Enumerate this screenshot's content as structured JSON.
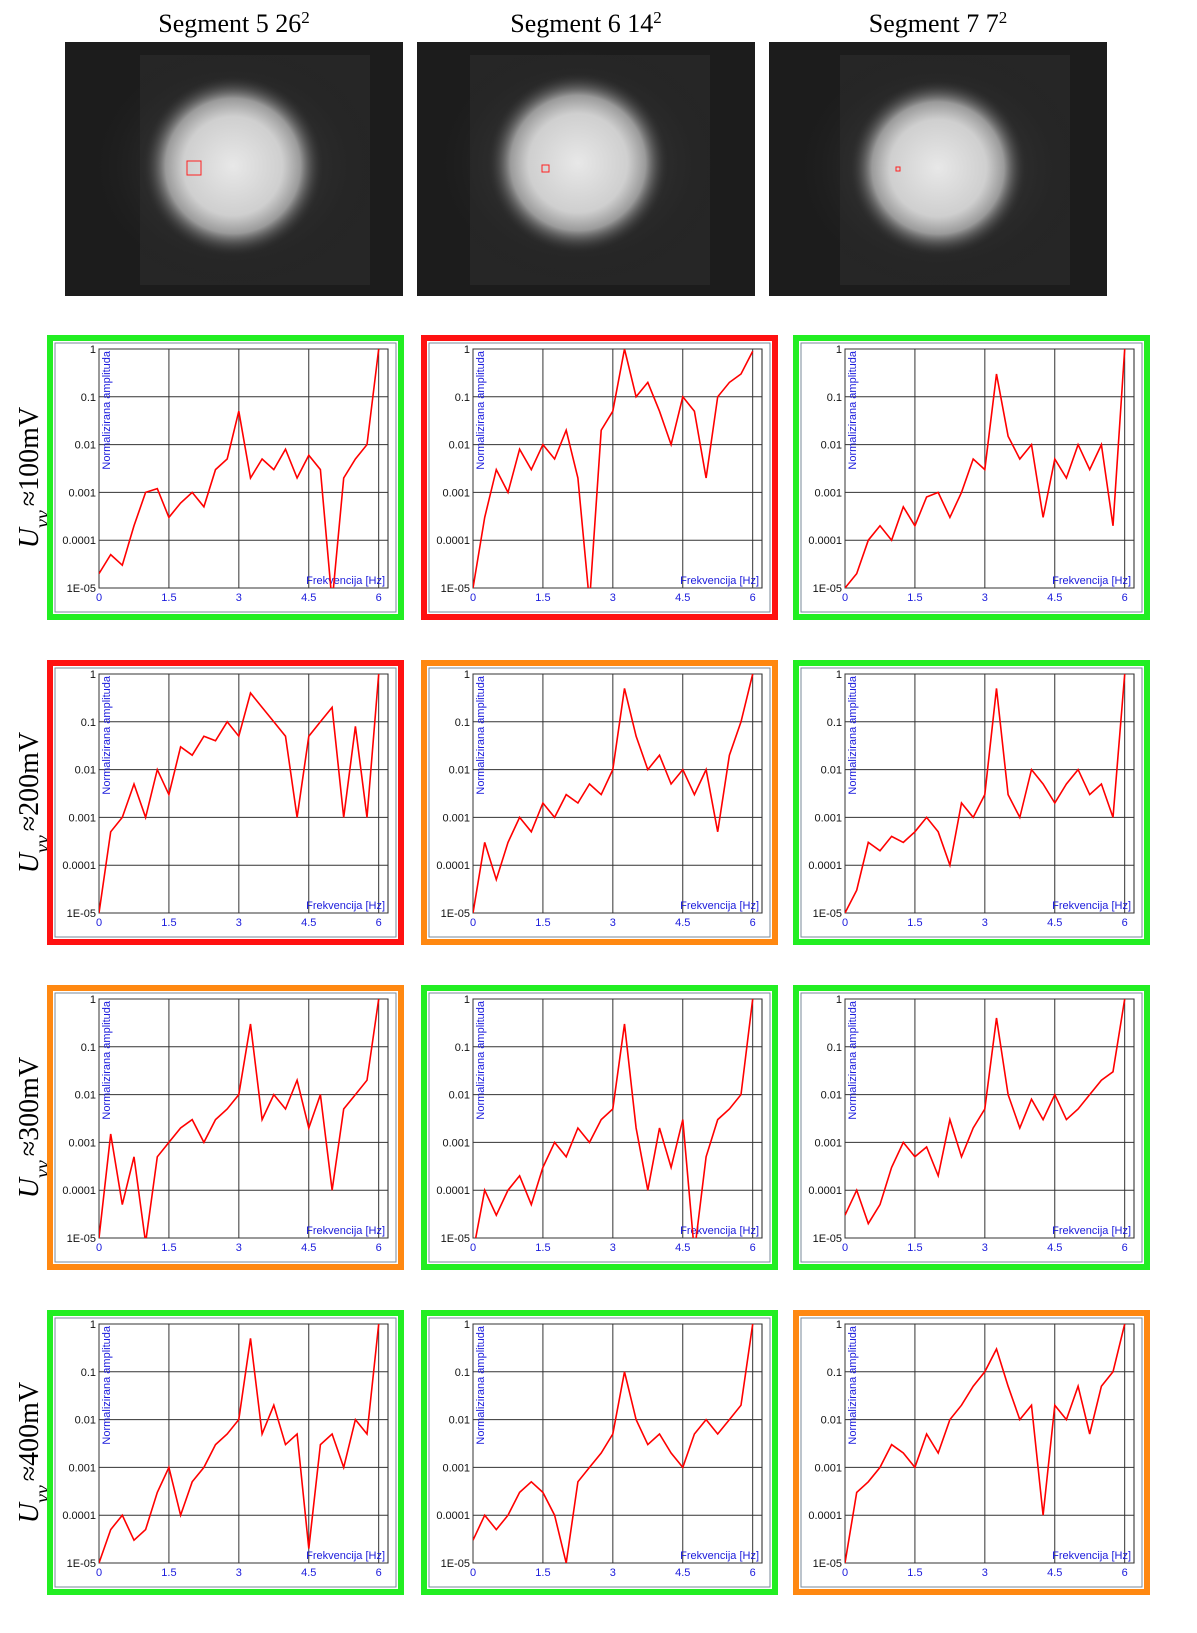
{
  "columns": [
    {
      "title": "Segment 5 26",
      "superscript": "2"
    },
    {
      "title": "Segment 6 14",
      "superscript": "2"
    },
    {
      "title": "Segment 7 7",
      "superscript": "2"
    }
  ],
  "rows": [
    {
      "symbol": "U",
      "subscript": "vv",
      "value": "≈100mV"
    },
    {
      "symbol": "U",
      "subscript": "vv",
      "value": "≈200mV"
    },
    {
      "symbol": "U",
      "subscript": "vv",
      "value": "≈300mV"
    },
    {
      "symbol": "U",
      "subscript": "vv",
      "value": "≈400mV"
    }
  ],
  "chart_data": [
    {
      "type": "line",
      "ylabel": "Normalizirana amplituda",
      "xlabel": "Frekvencija [Hz]",
      "frame_color": "#22ee22",
      "log_scale": true,
      "grid": true,
      "xlim": [
        0,
        6.2
      ],
      "xticks": [
        0,
        1.5,
        3,
        4.5,
        6
      ],
      "ylim": [
        1e-05,
        1
      ],
      "yticks": [
        {
          "value": 1e-05,
          "label": "1E-05"
        },
        0.0001,
        0.001,
        0.01,
        0.1,
        1
      ],
      "x": [
        0,
        0.25,
        0.5,
        0.75,
        1,
        1.25,
        1.5,
        1.75,
        2,
        2.25,
        2.5,
        2.75,
        3,
        3.25,
        3.5,
        3.75,
        4,
        4.25,
        4.5,
        4.75,
        5,
        5.25,
        5.5,
        5.75,
        6
      ],
      "series": [
        {
          "color": "#ff0000",
          "values": [
            2e-05,
            5e-05,
            3e-05,
            0.0002,
            0.001,
            0.0012,
            0.0003,
            0.0006,
            0.001,
            0.0005,
            0.003,
            0.005,
            0.05,
            0.002,
            0.005,
            0.003,
            0.008,
            0.002,
            0.006,
            0.003,
            5e-06,
            0.002,
            0.005,
            0.01,
            1
          ]
        }
      ]
    },
    {
      "type": "line",
      "ylabel": "Normalizirana amplituda",
      "xlabel": "Frekvencija [Hz]",
      "frame_color": "#ff1111",
      "log_scale": true,
      "grid": true,
      "xlim": [
        0,
        6.2
      ],
      "xticks": [
        0,
        1.5,
        3,
        4.5,
        6
      ],
      "ylim": [
        1e-05,
        1
      ],
      "yticks": [
        {
          "value": 1e-05,
          "label": "1E-05"
        },
        0.0001,
        0.001,
        0.01,
        0.1,
        1
      ],
      "x": [
        0,
        0.25,
        0.5,
        0.75,
        1,
        1.25,
        1.5,
        1.75,
        2,
        2.25,
        2.5,
        2.75,
        3,
        3.25,
        3.5,
        3.75,
        4,
        4.25,
        4.5,
        4.75,
        5,
        5.25,
        5.5,
        5.75,
        6
      ],
      "series": [
        {
          "color": "#ff0000",
          "values": [
            1e-05,
            0.0003,
            0.003,
            0.001,
            0.008,
            0.003,
            0.01,
            0.005,
            0.02,
            0.002,
            5e-06,
            0.02,
            0.05,
            1,
            0.1,
            0.2,
            0.05,
            0.01,
            0.1,
            0.05,
            0.002,
            0.1,
            0.2,
            0.3,
            0.9
          ]
        }
      ]
    },
    {
      "type": "line",
      "ylabel": "Normalizirana amplituda",
      "xlabel": "Frekvencija [Hz]",
      "frame_color": "#22ee22",
      "log_scale": true,
      "grid": true,
      "xlim": [
        0,
        6.2
      ],
      "xticks": [
        0,
        1.5,
        3,
        4.5,
        6
      ],
      "ylim": [
        1e-05,
        1
      ],
      "yticks": [
        {
          "value": 1e-05,
          "label": "1E-05"
        },
        0.0001,
        0.001,
        0.01,
        0.1,
        1
      ],
      "x": [
        0,
        0.25,
        0.5,
        0.75,
        1,
        1.25,
        1.5,
        1.75,
        2,
        2.25,
        2.5,
        2.75,
        3,
        3.25,
        3.5,
        3.75,
        4,
        4.25,
        4.5,
        4.75,
        5,
        5.25,
        5.5,
        5.75,
        6
      ],
      "series": [
        {
          "color": "#ff0000",
          "values": [
            1e-05,
            2e-05,
            0.0001,
            0.0002,
            0.0001,
            0.0005,
            0.0002,
            0.0008,
            0.001,
            0.0003,
            0.001,
            0.005,
            0.003,
            0.3,
            0.015,
            0.005,
            0.01,
            0.0003,
            0.005,
            0.002,
            0.01,
            0.003,
            0.01,
            0.0002,
            1
          ]
        }
      ]
    },
    {
      "type": "line",
      "ylabel": "Normalizirana amplituda",
      "xlabel": "Frekvencija [Hz]",
      "frame_color": "#ff1111",
      "log_scale": true,
      "grid": true,
      "xlim": [
        0,
        6.2
      ],
      "xticks": [
        0,
        1.5,
        3,
        4.5,
        6
      ],
      "ylim": [
        1e-05,
        1
      ],
      "yticks": [
        {
          "value": 1e-05,
          "label": "1E-05"
        },
        0.0001,
        0.001,
        0.01,
        0.1,
        1
      ],
      "x": [
        0,
        0.25,
        0.5,
        0.75,
        1,
        1.25,
        1.5,
        1.75,
        2,
        2.25,
        2.5,
        2.75,
        3,
        3.25,
        3.5,
        3.75,
        4,
        4.25,
        4.5,
        4.75,
        5,
        5.25,
        5.5,
        5.75,
        6
      ],
      "series": [
        {
          "color": "#ff0000",
          "values": [
            1e-05,
            0.0005,
            0.001,
            0.005,
            0.001,
            0.01,
            0.003,
            0.03,
            0.02,
            0.05,
            0.04,
            0.1,
            0.05,
            0.4,
            0.2,
            0.1,
            0.05,
            0.001,
            0.05,
            0.1,
            0.2,
            0.001,
            0.08,
            0.001,
            1
          ]
        }
      ]
    },
    {
      "type": "line",
      "ylabel": "Normalizirana amplituda",
      "xlabel": "Frekvencija [Hz]",
      "frame_color": "#ff8811",
      "log_scale": true,
      "grid": true,
      "xlim": [
        0,
        6.2
      ],
      "xticks": [
        0,
        1.5,
        3,
        4.5,
        6
      ],
      "ylim": [
        1e-05,
        1
      ],
      "yticks": [
        {
          "value": 1e-05,
          "label": "1E-05"
        },
        0.0001,
        0.001,
        0.01,
        0.1,
        1
      ],
      "x": [
        0,
        0.25,
        0.5,
        0.75,
        1,
        1.25,
        1.5,
        1.75,
        2,
        2.25,
        2.5,
        2.75,
        3,
        3.25,
        3.5,
        3.75,
        4,
        4.25,
        4.5,
        4.75,
        5,
        5.25,
        5.5,
        5.75,
        6
      ],
      "series": [
        {
          "color": "#ff0000",
          "values": [
            1e-05,
            0.0003,
            5e-05,
            0.0003,
            0.001,
            0.0005,
            0.002,
            0.001,
            0.003,
            0.002,
            0.005,
            0.003,
            0.01,
            0.5,
            0.05,
            0.01,
            0.02,
            0.005,
            0.01,
            0.003,
            0.01,
            0.0005,
            0.02,
            0.1,
            1
          ]
        }
      ]
    },
    {
      "type": "line",
      "ylabel": "Normalizirana amplituda",
      "xlabel": "Frekvencija [Hz]",
      "frame_color": "#22ee22",
      "log_scale": true,
      "grid": true,
      "xlim": [
        0,
        6.2
      ],
      "xticks": [
        0,
        1.5,
        3,
        4.5,
        6
      ],
      "ylim": [
        1e-05,
        1
      ],
      "yticks": [
        {
          "value": 1e-05,
          "label": "1E-05"
        },
        0.0001,
        0.001,
        0.01,
        0.1,
        1
      ],
      "x": [
        0,
        0.25,
        0.5,
        0.75,
        1,
        1.25,
        1.5,
        1.75,
        2,
        2.25,
        2.5,
        2.75,
        3,
        3.25,
        3.5,
        3.75,
        4,
        4.25,
        4.5,
        4.75,
        5,
        5.25,
        5.5,
        5.75,
        6
      ],
      "series": [
        {
          "color": "#ff0000",
          "values": [
            1e-05,
            3e-05,
            0.0003,
            0.0002,
            0.0004,
            0.0003,
            0.0005,
            0.001,
            0.0005,
            0.0001,
            0.002,
            0.001,
            0.003,
            0.5,
            0.003,
            0.001,
            0.01,
            0.005,
            0.002,
            0.005,
            0.01,
            0.003,
            0.005,
            0.001,
            1
          ]
        }
      ]
    },
    {
      "type": "line",
      "ylabel": "Normalizirana amplituda",
      "xlabel": "Frekvencija [Hz]",
      "frame_color": "#ff8811",
      "log_scale": true,
      "grid": true,
      "xlim": [
        0,
        6.2
      ],
      "xticks": [
        0,
        1.5,
        3,
        4.5,
        6
      ],
      "ylim": [
        1e-05,
        1
      ],
      "yticks": [
        {
          "value": 1e-05,
          "label": "1E-05"
        },
        0.0001,
        0.001,
        0.01,
        0.1,
        1
      ],
      "x": [
        0,
        0.25,
        0.5,
        0.75,
        1,
        1.25,
        1.5,
        1.75,
        2,
        2.25,
        2.5,
        2.75,
        3,
        3.25,
        3.5,
        3.75,
        4,
        4.25,
        4.5,
        4.75,
        5,
        5.25,
        5.5,
        5.75,
        6
      ],
      "series": [
        {
          "color": "#ff0000",
          "values": [
            1e-05,
            0.0015,
            5e-05,
            0.0005,
            8e-06,
            0.0005,
            0.001,
            0.002,
            0.003,
            0.001,
            0.003,
            0.005,
            0.01,
            0.3,
            0.003,
            0.01,
            0.005,
            0.02,
            0.002,
            0.01,
            0.0001,
            0.005,
            0.01,
            0.02,
            1
          ]
        }
      ]
    },
    {
      "type": "line",
      "ylabel": "Normalizirana amplituda",
      "xlabel": "Frekvencija [Hz]",
      "frame_color": "#22ee22",
      "log_scale": true,
      "grid": true,
      "xlim": [
        0,
        6.2
      ],
      "xticks": [
        0,
        1.5,
        3,
        4.5,
        6
      ],
      "ylim": [
        1e-05,
        1
      ],
      "yticks": [
        {
          "value": 1e-05,
          "label": "1E-05"
        },
        0.0001,
        0.001,
        0.01,
        0.1,
        1
      ],
      "x": [
        0,
        0.25,
        0.5,
        0.75,
        1,
        1.25,
        1.5,
        1.75,
        2,
        2.25,
        2.5,
        2.75,
        3,
        3.25,
        3.5,
        3.75,
        4,
        4.25,
        4.5,
        4.75,
        5,
        5.25,
        5.5,
        5.75,
        6
      ],
      "series": [
        {
          "color": "#ff0000",
          "values": [
            5e-06,
            0.0001,
            3e-05,
            0.0001,
            0.0002,
            5e-05,
            0.0003,
            0.001,
            0.0005,
            0.002,
            0.001,
            0.003,
            0.005,
            0.3,
            0.002,
            0.0001,
            0.002,
            0.0003,
            0.003,
            5e-06,
            0.0005,
            0.003,
            0.005,
            0.01,
            1
          ]
        }
      ]
    },
    {
      "type": "line",
      "ylabel": "Normalizirana amplituda",
      "xlabel": "Frekvencija [Hz]",
      "frame_color": "#22ee22",
      "log_scale": true,
      "grid": true,
      "xlim": [
        0,
        6.2
      ],
      "xticks": [
        0,
        1.5,
        3,
        4.5,
        6
      ],
      "ylim": [
        1e-05,
        1
      ],
      "yticks": [
        {
          "value": 1e-05,
          "label": "1E-05"
        },
        0.0001,
        0.001,
        0.01,
        0.1,
        1
      ],
      "x": [
        0,
        0.25,
        0.5,
        0.75,
        1,
        1.25,
        1.5,
        1.75,
        2,
        2.25,
        2.5,
        2.75,
        3,
        3.25,
        3.5,
        3.75,
        4,
        4.25,
        4.5,
        4.75,
        5,
        5.25,
        5.5,
        5.75,
        6
      ],
      "series": [
        {
          "color": "#ff0000",
          "values": [
            3e-05,
            0.0001,
            2e-05,
            5e-05,
            0.0003,
            0.001,
            0.0005,
            0.0008,
            0.0002,
            0.003,
            0.0005,
            0.002,
            0.005,
            0.4,
            0.01,
            0.002,
            0.008,
            0.003,
            0.01,
            0.003,
            0.005,
            0.01,
            0.02,
            0.03,
            1
          ]
        }
      ]
    },
    {
      "type": "line",
      "ylabel": "Normalizirana amplituda",
      "xlabel": "Frekvencija [Hz]",
      "frame_color": "#22ee22",
      "log_scale": true,
      "grid": true,
      "xlim": [
        0,
        6.2
      ],
      "xticks": [
        0,
        1.5,
        3,
        4.5,
        6
      ],
      "ylim": [
        1e-05,
        1
      ],
      "yticks": [
        {
          "value": 1e-05,
          "label": "1E-05"
        },
        0.0001,
        0.001,
        0.01,
        0.1,
        1
      ],
      "x": [
        0,
        0.25,
        0.5,
        0.75,
        1,
        1.25,
        1.5,
        1.75,
        2,
        2.25,
        2.5,
        2.75,
        3,
        3.25,
        3.5,
        3.75,
        4,
        4.25,
        4.5,
        4.75,
        5,
        5.25,
        5.5,
        5.75,
        6
      ],
      "series": [
        {
          "color": "#ff0000",
          "values": [
            1e-05,
            5e-05,
            0.0001,
            3e-05,
            5e-05,
            0.0003,
            0.001,
            0.0001,
            0.0005,
            0.001,
            0.003,
            0.005,
            0.01,
            0.5,
            0.005,
            0.02,
            0.003,
            0.005,
            2e-05,
            0.003,
            0.005,
            0.001,
            0.01,
            0.005,
            1
          ]
        }
      ]
    },
    {
      "type": "line",
      "ylabel": "Normalizirana amplituda",
      "xlabel": "Frekvencija [Hz]",
      "frame_color": "#22ee22",
      "log_scale": true,
      "grid": true,
      "xlim": [
        0,
        6.2
      ],
      "xticks": [
        0,
        1.5,
        3,
        4.5,
        6
      ],
      "ylim": [
        1e-05,
        1
      ],
      "yticks": [
        {
          "value": 1e-05,
          "label": "1E-05"
        },
        0.0001,
        0.001,
        0.01,
        0.1,
        1
      ],
      "x": [
        0,
        0.25,
        0.5,
        0.75,
        1,
        1.25,
        1.5,
        1.75,
        2,
        2.25,
        2.5,
        2.75,
        3,
        3.25,
        3.5,
        3.75,
        4,
        4.25,
        4.5,
        4.75,
        5,
        5.25,
        5.5,
        5.75,
        6
      ],
      "series": [
        {
          "color": "#ff0000",
          "values": [
            3e-05,
            0.0001,
            5e-05,
            0.0001,
            0.0003,
            0.0005,
            0.0003,
            0.0001,
            1e-05,
            0.0005,
            0.001,
            0.002,
            0.005,
            0.1,
            0.01,
            0.003,
            0.005,
            0.002,
            0.001,
            0.005,
            0.01,
            0.005,
            0.01,
            0.02,
            1
          ]
        }
      ]
    },
    {
      "type": "line",
      "ylabel": "Normalizirana amplituda",
      "xlabel": "Frekvencija [Hz]",
      "frame_color": "#ff8811",
      "log_scale": true,
      "grid": true,
      "xlim": [
        0,
        6.2
      ],
      "xticks": [
        0,
        1.5,
        3,
        4.5,
        6
      ],
      "ylim": [
        1e-05,
        1
      ],
      "yticks": [
        {
          "value": 1e-05,
          "label": "1E-05"
        },
        0.0001,
        0.001,
        0.01,
        0.1,
        1
      ],
      "x": [
        0,
        0.25,
        0.5,
        0.75,
        1,
        1.25,
        1.5,
        1.75,
        2,
        2.25,
        2.5,
        2.75,
        3,
        3.25,
        3.5,
        3.75,
        4,
        4.25,
        4.5,
        4.75,
        5,
        5.25,
        5.5,
        5.75,
        6
      ],
      "series": [
        {
          "color": "#ff0000",
          "values": [
            1e-05,
            0.0003,
            0.0005,
            0.001,
            0.003,
            0.002,
            0.001,
            0.005,
            0.002,
            0.01,
            0.02,
            0.05,
            0.1,
            0.3,
            0.05,
            0.01,
            0.02,
            0.0001,
            0.02,
            0.01,
            0.05,
            0.005,
            0.05,
            0.1,
            1
          ]
        }
      ]
    }
  ]
}
